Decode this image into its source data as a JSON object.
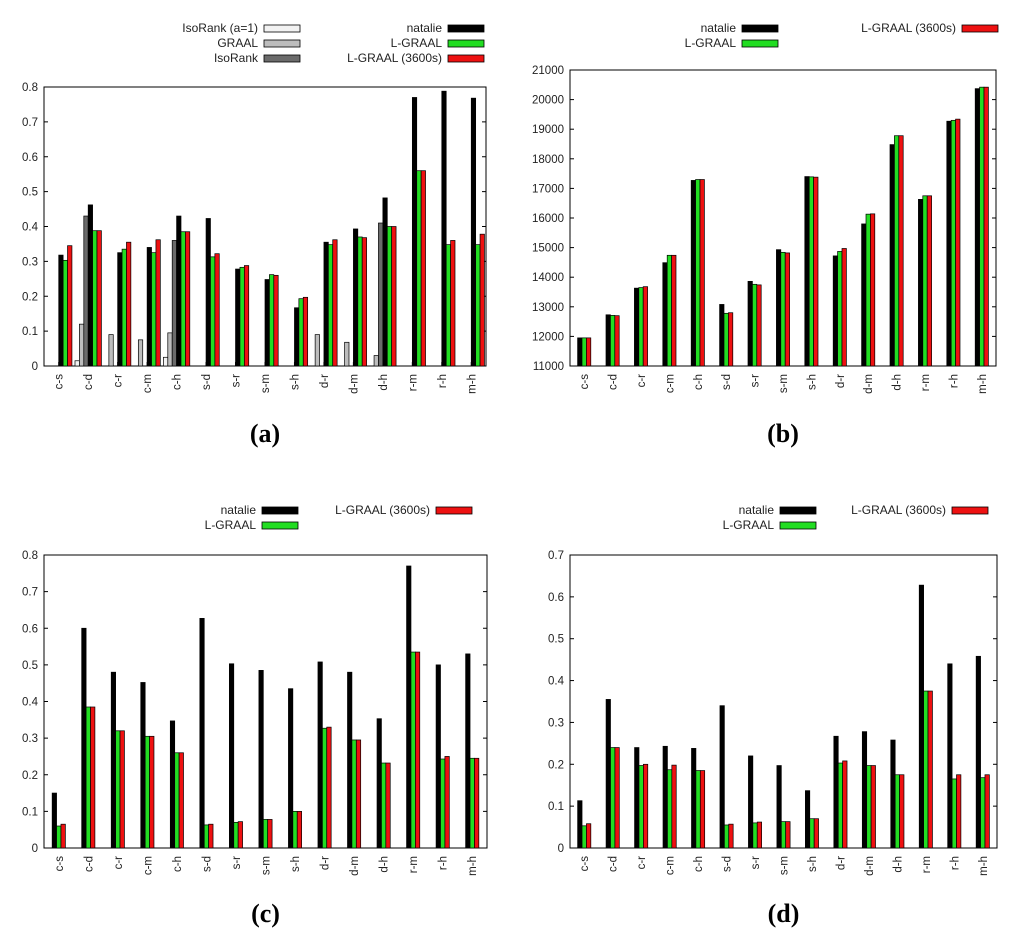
{
  "categories": [
    "c-s",
    "c-d",
    "c-r",
    "c-m",
    "c-h",
    "s-d",
    "s-r",
    "s-m",
    "s-h",
    "d-r",
    "d-m",
    "d-h",
    "r-m",
    "r-h",
    "m-h"
  ],
  "colors": {
    "IsoRank (a=1)": "#f2f2f2",
    "GRAAL": "#bdbdbd",
    "IsoRank": "#6b6b6b",
    "natalie": "#000000",
    "L-GRAAL": "#22dd22",
    "L-GRAAL (3600s)": "#ee1111"
  },
  "chart_data": [
    {
      "panel": "(a)",
      "type": "bar",
      "ylim": [
        0,
        0.8
      ],
      "yticks": [
        "0",
        "0.1",
        "0.2",
        "0.3",
        "0.4",
        "0.5",
        "0.6",
        "0.7",
        "0.8"
      ],
      "legend": [
        "IsoRank (a=1)",
        "GRAAL",
        "IsoRank",
        "natalie",
        "L-GRAAL",
        "L-GRAAL (3600s)"
      ],
      "series": [
        {
          "name": "IsoRank (a=1)",
          "values": [
            0,
            0.015,
            0,
            0,
            0.025,
            0,
            0,
            0,
            0,
            0,
            0,
            0,
            0,
            0,
            0
          ]
        },
        {
          "name": "GRAAL",
          "values": [
            0,
            0.12,
            0.09,
            0.075,
            0.095,
            0,
            0,
            0,
            0,
            0.09,
            0.068,
            0.03,
            0,
            0,
            0
          ]
        },
        {
          "name": "IsoRank",
          "values": [
            0,
            0.43,
            0,
            0,
            0.36,
            0,
            0,
            0,
            0,
            0,
            0,
            0.41,
            0,
            0,
            0
          ]
        },
        {
          "name": "natalie",
          "values": [
            0.318,
            0.462,
            0.325,
            0.34,
            0.43,
            0.423,
            0.278,
            0.248,
            0.167,
            0.355,
            0.393,
            0.482,
            0.77,
            0.788,
            0.768
          ]
        },
        {
          "name": "L-GRAAL",
          "values": [
            0.303,
            0.388,
            0.335,
            0.325,
            0.385,
            0.313,
            0.283,
            0.262,
            0.193,
            0.348,
            0.37,
            0.4,
            0.56,
            0.348,
            0.348
          ]
        },
        {
          "name": "L-GRAAL (3600s)",
          "values": [
            0.345,
            0.388,
            0.355,
            0.362,
            0.385,
            0.322,
            0.288,
            0.26,
            0.197,
            0.362,
            0.368,
            0.4,
            0.56,
            0.36,
            0.378
          ]
        }
      ]
    },
    {
      "panel": "(b)",
      "type": "bar",
      "ylim": [
        11000,
        21000
      ],
      "yticks": [
        "11000",
        "12000",
        "13000",
        "14000",
        "15000",
        "16000",
        "17000",
        "18000",
        "19000",
        "20000",
        "21000"
      ],
      "legend": [
        "natalie",
        "L-GRAAL",
        "L-GRAAL (3600s)"
      ],
      "series": [
        {
          "name": "natalie",
          "values": [
            11950,
            12730,
            13630,
            14490,
            17270,
            13080,
            13860,
            14930,
            17400,
            14720,
            15800,
            18480,
            16630,
            19270,
            20370
          ]
        },
        {
          "name": "L-GRAAL",
          "values": [
            11950,
            12710,
            13650,
            14740,
            17300,
            12780,
            13760,
            14840,
            17390,
            14870,
            16130,
            18780,
            16750,
            19300,
            20420
          ]
        },
        {
          "name": "L-GRAAL (3600s)",
          "values": [
            11950,
            12700,
            13680,
            14740,
            17300,
            12800,
            13740,
            14820,
            17380,
            14970,
            16140,
            18780,
            16750,
            19340,
            20420
          ]
        }
      ]
    },
    {
      "panel": "(c)",
      "type": "bar",
      "ylim": [
        0,
        0.8
      ],
      "yticks": [
        "0",
        "0.1",
        "0.2",
        "0.3",
        "0.4",
        "0.5",
        "0.6",
        "0.7",
        "0.8"
      ],
      "legend": [
        "natalie",
        "L-GRAAL",
        "L-GRAAL (3600s)"
      ],
      "series": [
        {
          "name": "natalie",
          "values": [
            0.15,
            0.6,
            0.48,
            0.452,
            0.347,
            0.627,
            0.503,
            0.485,
            0.435,
            0.508,
            0.48,
            0.353,
            0.77,
            0.5,
            0.53
          ]
        },
        {
          "name": "L-GRAAL",
          "values": [
            0.06,
            0.385,
            0.32,
            0.305,
            0.26,
            0.063,
            0.07,
            0.078,
            0.1,
            0.327,
            0.295,
            0.232,
            0.535,
            0.243,
            0.245
          ]
        },
        {
          "name": "L-GRAAL (3600s)",
          "values": [
            0.065,
            0.385,
            0.32,
            0.305,
            0.26,
            0.065,
            0.072,
            0.078,
            0.1,
            0.33,
            0.295,
            0.232,
            0.535,
            0.25,
            0.245
          ]
        }
      ]
    },
    {
      "panel": "(d)",
      "type": "bar",
      "ylim": [
        0,
        0.7
      ],
      "yticks": [
        "0",
        "0.1",
        "0.2",
        "0.3",
        "0.4",
        "0.5",
        "0.6",
        "0.7"
      ],
      "legend": [
        "natalie",
        "L-GRAAL",
        "L-GRAAL (3600s)"
      ],
      "series": [
        {
          "name": "natalie",
          "values": [
            0.113,
            0.355,
            0.24,
            0.243,
            0.238,
            0.34,
            0.22,
            0.197,
            0.137,
            0.267,
            0.278,
            0.258,
            0.628,
            0.44,
            0.458
          ]
        },
        {
          "name": "L-GRAAL",
          "values": [
            0.053,
            0.24,
            0.197,
            0.187,
            0.185,
            0.055,
            0.06,
            0.063,
            0.07,
            0.203,
            0.197,
            0.175,
            0.375,
            0.165,
            0.168
          ]
        },
        {
          "name": "L-GRAAL (3600s)",
          "values": [
            0.058,
            0.24,
            0.2,
            0.198,
            0.185,
            0.057,
            0.062,
            0.063,
            0.07,
            0.208,
            0.197,
            0.175,
            0.375,
            0.175,
            0.175
          ]
        }
      ]
    }
  ]
}
